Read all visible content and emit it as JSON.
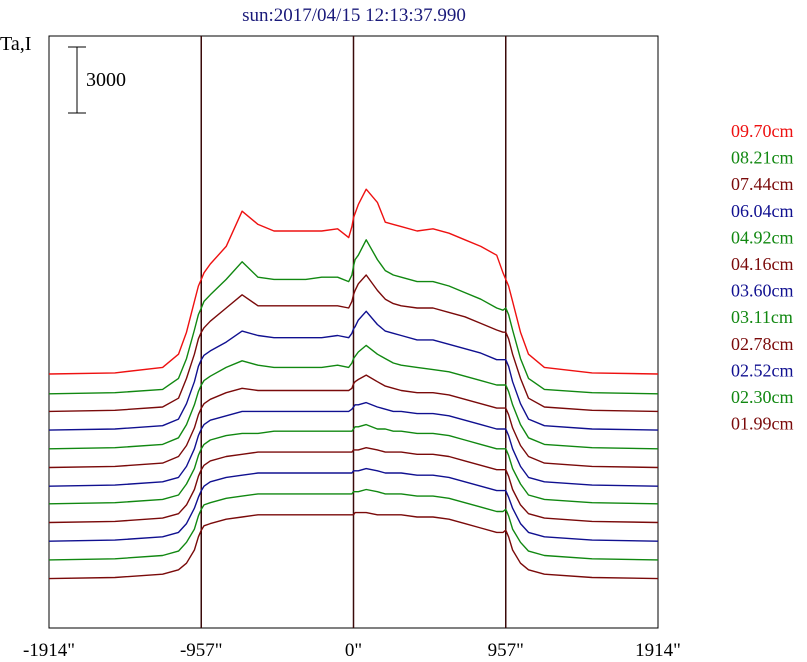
{
  "chart_data": {
    "type": "line",
    "title": "sun:2017/04/15 12:13:37.990",
    "ylabel": "Ta,I",
    "xlabel": "",
    "scale_bar_label": "3000",
    "scale_bar_value": 3000,
    "xlim": [
      -1914,
      1914
    ],
    "x_ticks": [
      -1914,
      -957,
      0,
      957,
      1914
    ],
    "x_tick_labels": [
      "-1914\"",
      "-957\"",
      "0\"",
      "957\"",
      "1914\""
    ],
    "vertical_lines": [
      -957,
      0,
      957
    ],
    "grid": false,
    "legend_position": "right",
    "x": [
      -1914,
      -1500,
      -1200,
      -1100,
      -1050,
      -1000,
      -975,
      -957,
      -940,
      -900,
      -800,
      -700,
      -600,
      -500,
      -400,
      -300,
      -200,
      -100,
      -30,
      -10,
      0,
      10,
      30,
      80,
      150,
      200,
      250,
      300,
      400,
      500,
      600,
      700,
      800,
      900,
      940,
      957,
      975,
      1000,
      1050,
      1100,
      1200,
      1500,
      1914
    ],
    "series": [
      {
        "name": "09.70cm",
        "color": "#ee1111",
        "baseline": 10500,
        "values": [
          0,
          50,
          300,
          900,
          1900,
          3300,
          4000,
          4300,
          4600,
          5000,
          5800,
          7400,
          6800,
          6500,
          6500,
          6500,
          6500,
          6600,
          6200,
          6700,
          7100,
          7300,
          7700,
          8400,
          7800,
          6900,
          6800,
          6700,
          6500,
          6600,
          6400,
          6100,
          5800,
          5400,
          4600,
          4300,
          4000,
          3300,
          1900,
          900,
          300,
          50,
          0
        ]
      },
      {
        "name": "08.21cm",
        "color": "#118811",
        "baseline": 9600,
        "values": [
          0,
          50,
          200,
          700,
          1600,
          2900,
          3600,
          3900,
          4200,
          4500,
          5200,
          6000,
          5300,
          5200,
          5200,
          5200,
          5300,
          5300,
          5100,
          5400,
          5800,
          6100,
          6300,
          7000,
          6100,
          5600,
          5400,
          5300,
          5100,
          5100,
          4900,
          4600,
          4300,
          3900,
          3800,
          3900,
          3600,
          2900,
          1600,
          700,
          200,
          50,
          0
        ]
      },
      {
        "name": "07.44cm",
        "color": "#7a0a0a",
        "baseline": 8800,
        "values": [
          0,
          50,
          200,
          600,
          1500,
          2600,
          3300,
          3600,
          3800,
          4100,
          4700,
          5300,
          4800,
          4800,
          4800,
          4800,
          4800,
          4800,
          4700,
          5000,
          5300,
          5500,
          5800,
          6200,
          5500,
          5100,
          4900,
          4800,
          4700,
          4700,
          4500,
          4300,
          4000,
          3700,
          3600,
          3600,
          3300,
          2600,
          1500,
          600,
          200,
          50,
          0
        ]
      },
      {
        "name": "06.04cm",
        "color": "#101090",
        "baseline": 7950,
        "values": [
          0,
          50,
          200,
          500,
          1200,
          2200,
          2900,
          3200,
          3400,
          3600,
          4000,
          4500,
          4300,
          4200,
          4200,
          4200,
          4200,
          4300,
          4200,
          4400,
          4600,
          4700,
          5000,
          5400,
          4800,
          4500,
          4400,
          4300,
          4100,
          4100,
          3900,
          3700,
          3500,
          3200,
          3200,
          3200,
          2900,
          2200,
          1200,
          500,
          200,
          50,
          0
        ]
      },
      {
        "name": "04.92cm",
        "color": "#118811",
        "baseline": 7100,
        "values": [
          0,
          50,
          200,
          500,
          1100,
          2000,
          2600,
          2900,
          3100,
          3300,
          3700,
          4000,
          3800,
          3700,
          3700,
          3700,
          3700,
          3800,
          3700,
          3900,
          4100,
          4200,
          4400,
          4700,
          4300,
          4100,
          3900,
          3800,
          3700,
          3600,
          3500,
          3300,
          3100,
          2900,
          2900,
          2900,
          2600,
          2000,
          1100,
          500,
          200,
          50,
          0
        ]
      },
      {
        "name": "04.16cm",
        "color": "#7a0a0a",
        "baseline": 6250,
        "values": [
          0,
          50,
          200,
          500,
          1000,
          1800,
          2400,
          2700,
          2900,
          3100,
          3400,
          3600,
          3500,
          3500,
          3500,
          3500,
          3500,
          3500,
          3500,
          3600,
          3800,
          3900,
          4000,
          4200,
          3900,
          3700,
          3600,
          3500,
          3400,
          3400,
          3300,
          3100,
          2900,
          2700,
          2700,
          2700,
          2400,
          1800,
          1000,
          500,
          200,
          50,
          0
        ]
      },
      {
        "name": "03.60cm",
        "color": "#101090",
        "baseline": 5400,
        "values": [
          0,
          50,
          200,
          400,
          900,
          1700,
          2300,
          2600,
          2800,
          3000,
          3200,
          3400,
          3400,
          3400,
          3400,
          3400,
          3400,
          3400,
          3400,
          3500,
          3600,
          3700,
          3700,
          3800,
          3600,
          3500,
          3400,
          3400,
          3300,
          3300,
          3200,
          3000,
          2800,
          2600,
          2600,
          2600,
          2300,
          1700,
          900,
          400,
          200,
          50,
          0
        ]
      },
      {
        "name": "03.11cm",
        "color": "#118811",
        "baseline": 4600,
        "values": [
          0,
          50,
          200,
          400,
          900,
          1600,
          2200,
          2500,
          2700,
          2900,
          3100,
          3200,
          3200,
          3300,
          3300,
          3300,
          3300,
          3300,
          3300,
          3300,
          3400,
          3500,
          3500,
          3600,
          3400,
          3400,
          3300,
          3300,
          3200,
          3200,
          3100,
          2900,
          2700,
          2500,
          2500,
          2500,
          2200,
          1600,
          900,
          400,
          200,
          50,
          0
        ]
      },
      {
        "name": "02.78cm",
        "color": "#7a0a0a",
        "baseline": 3750,
        "values": [
          0,
          50,
          200,
          400,
          800,
          1500,
          2100,
          2400,
          2600,
          2800,
          3000,
          3100,
          3200,
          3200,
          3200,
          3200,
          3200,
          3200,
          3200,
          3200,
          3300,
          3300,
          3300,
          3400,
          3300,
          3200,
          3200,
          3200,
          3100,
          3100,
          3000,
          2800,
          2600,
          2400,
          2400,
          2400,
          2100,
          1500,
          800,
          400,
          200,
          50,
          0
        ]
      },
      {
        "name": "02.52cm",
        "color": "#101090",
        "baseline": 2900,
        "values": [
          0,
          50,
          200,
          400,
          800,
          1500,
          2000,
          2300,
          2500,
          2700,
          2900,
          3000,
          3100,
          3100,
          3100,
          3100,
          3100,
          3100,
          3100,
          3100,
          3200,
          3200,
          3200,
          3300,
          3200,
          3100,
          3100,
          3100,
          3000,
          3000,
          2900,
          2700,
          2500,
          2300,
          2300,
          2300,
          2000,
          1500,
          800,
          400,
          200,
          50,
          0
        ]
      },
      {
        "name": "02.30cm",
        "color": "#118811",
        "baseline": 2050,
        "values": [
          0,
          50,
          200,
          400,
          800,
          1400,
          2000,
          2300,
          2500,
          2600,
          2800,
          2900,
          3000,
          3000,
          3000,
          3000,
          3000,
          3000,
          3000,
          3000,
          3100,
          3100,
          3100,
          3200,
          3100,
          3000,
          3000,
          3000,
          2900,
          2900,
          2800,
          2600,
          2400,
          2200,
          2200,
          2300,
          2000,
          1400,
          800,
          400,
          200,
          50,
          0
        ]
      },
      {
        "name": "01.99cm",
        "color": "#7a0a0a",
        "baseline": 1200,
        "values": [
          0,
          50,
          200,
          400,
          700,
          1300,
          1900,
          2200,
          2400,
          2500,
          2700,
          2800,
          2900,
          2900,
          2900,
          2900,
          2900,
          2900,
          2900,
          2900,
          2900,
          3000,
          3000,
          3000,
          2900,
          2900,
          2900,
          2900,
          2800,
          2800,
          2700,
          2500,
          2300,
          2100,
          2100,
          2200,
          1900,
          1300,
          700,
          400,
          200,
          50,
          0
        ]
      }
    ]
  }
}
